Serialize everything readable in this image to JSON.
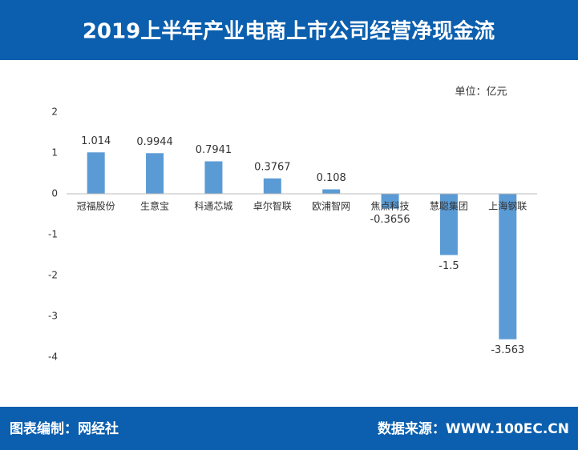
{
  "chart_data": {
    "type": "bar",
    "title": "2019上半年产业电商上市公司经营净现金流",
    "unit": "单位：亿元",
    "categories": [
      "冠福股份",
      "生意宝",
      "科通芯城",
      "卓尔智联",
      "欧浦智网",
      "焦点科技",
      "慧聪集团",
      "上海钢联"
    ],
    "values": [
      1.014,
      0.9944,
      0.7941,
      0.3767,
      0.108,
      -0.3656,
      -1.5,
      -3.563
    ],
    "color": "#5b9bd5",
    "ylim": [
      -4,
      2
    ],
    "yticks": [
      2,
      1,
      0,
      -1,
      -2,
      -3,
      -4
    ],
    "grid": false,
    "footer_left": "图表编制：网经社",
    "footer_right": "数据来源：WWW.100EC.CN"
  }
}
